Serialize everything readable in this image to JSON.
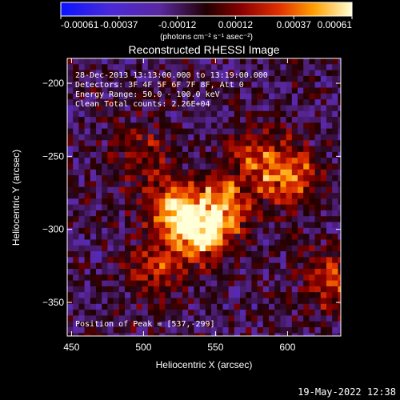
{
  "chart_data": {
    "type": "heatmap",
    "title": "Reconstructed RHESSI Image",
    "xlabel": "Heliocentric X (arcsec)",
    "ylabel": "Heliocentric Y (arcsec)",
    "xlim": [
      447,
      637
    ],
    "ylim": [
      -373,
      -183
    ],
    "x_ticks": [
      450,
      500,
      550,
      600
    ],
    "y_ticks": [
      -200,
      -250,
      -300,
      -350
    ],
    "colorbar": {
      "ticks": [
        "-0.00061",
        "-0.00037",
        "-0.00012",
        "0.00012",
        "0.00037",
        "0.00061"
      ],
      "unit_text": "(photons cm⁻² s⁻¹ asec⁻²)",
      "min": -0.00061,
      "max": 0.00061
    },
    "annotations": [
      "28-Dec-2013 13:13:00.000 to 13:19:00.000",
      "Detectors: 3F 4F 5F 6F 7F 8F, Att 0",
      "Energy Range: 50.0 - 100.0 keV",
      "Clean     Total counts: 2.26E+04"
    ],
    "peak_label": "Position of Peak = [537,-299]",
    "sources": [
      {
        "x": 537,
        "y": -299,
        "intensity": 0.00061
      },
      {
        "x": 518,
        "y": -283,
        "intensity": 0.00048
      },
      {
        "x": 553,
        "y": -283,
        "intensity": 0.00042
      },
      {
        "x": 600,
        "y": -262,
        "intensity": 0.00045
      },
      {
        "x": 630,
        "y": -335,
        "intensity": 0.00035
      },
      {
        "x": 498,
        "y": -245,
        "intensity": 0.00025
      },
      {
        "x": 575,
        "y": -250,
        "intensity": 0.0003
      },
      {
        "x": 505,
        "y": -325,
        "intensity": 0.00028
      }
    ]
  },
  "footer_timestamp": "19-May-2022 12:38"
}
